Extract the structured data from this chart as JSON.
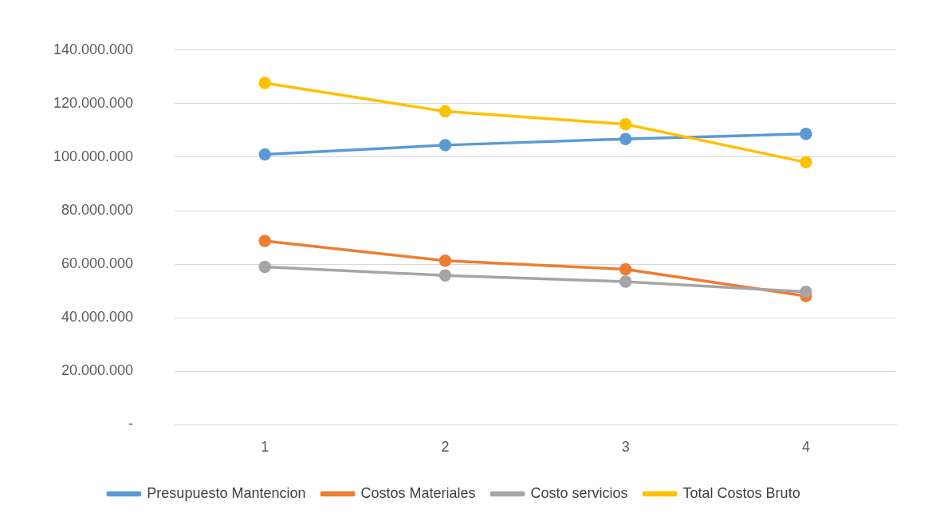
{
  "chart_data": {
    "type": "line",
    "categories": [
      "1",
      "2",
      "3",
      "4"
    ],
    "series": [
      {
        "name": "Presupuesto Mantencion",
        "color": "#5b9bd5",
        "values": [
          101000000,
          104500000,
          106800000,
          108700000
        ]
      },
      {
        "name": "Costos Materiales",
        "color": "#ed7d31",
        "values": [
          68700000,
          61300000,
          58100000,
          48100000
        ]
      },
      {
        "name": "Costo servicios",
        "color": "#a5a5a5",
        "values": [
          59000000,
          55800000,
          53500000,
          49700000
        ]
      },
      {
        "name": "Total Costos Bruto",
        "color": "#ffc000",
        "values": [
          127700000,
          117100000,
          112300000,
          98100000
        ]
      }
    ],
    "ylim": [
      0,
      140000000
    ],
    "yticks": [
      {
        "value": 0,
        "label": "-"
      },
      {
        "value": 20000000,
        "label": "20.000.000"
      },
      {
        "value": 40000000,
        "label": "40.000.000"
      },
      {
        "value": 60000000,
        "label": "60.000.000"
      },
      {
        "value": 80000000,
        "label": "80.000.000"
      },
      {
        "value": 100000000,
        "label": "100.000.000"
      },
      {
        "value": 120000000,
        "label": "120.000.000"
      },
      {
        "value": 140000000,
        "label": "140.000.000"
      }
    ],
    "grid": "y",
    "legend": "bottom",
    "marker": "circle",
    "line_style": "solid"
  }
}
